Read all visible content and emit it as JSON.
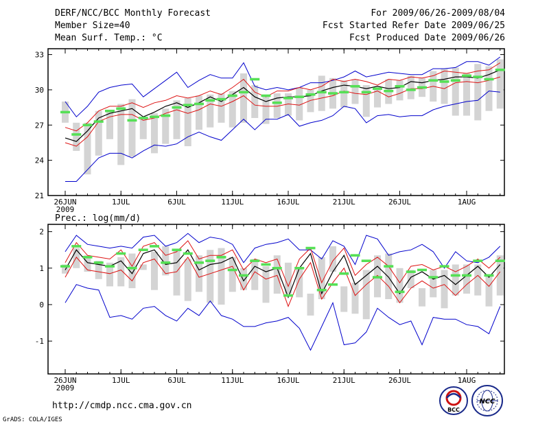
{
  "header": {
    "title": "DERF/NCC/BCC Monthly Forecast",
    "member_size": "Member Size=40",
    "variable": "Mean Surf. Temp.: °C",
    "period": "For 2009/06/26-2009/08/04",
    "started": "Fcst Started Refer Date 2009/06/25",
    "produced": "Fcst Produced Date 2009/06/26"
  },
  "footer": {
    "url": "http://cmdp.ncc.cma.gov.cn",
    "credit": "GrADS: COLA/IGES",
    "logo_bcc_text": "BCC",
    "logo_ncc_text": "NCC"
  },
  "colors": {
    "box": "#d4d4d4",
    "median": "#55e055",
    "envelope": "#0000cc",
    "spread": "#dd1111",
    "mean": "#000000"
  },
  "chart_data": [
    {
      "type": "line",
      "title": "Mean Surf. Temp.: °C",
      "ylabel": "°C",
      "ylim": [
        21,
        33.5
      ],
      "yticks": [
        21,
        24,
        27,
        30,
        33
      ],
      "day_count": 40,
      "start_date": "2009-06-26",
      "xtick_days": [
        0,
        5,
        10,
        15,
        20,
        25,
        30,
        36
      ],
      "xtick_labels": [
        "26JUN",
        "1JUL",
        "6JUL",
        "11JUL",
        "16JUL",
        "21JUL",
        "26JUL",
        "1AUG"
      ],
      "xtick_sublabel": "2009",
      "series": [
        {
          "name": "ensemble max",
          "values": [
            22.2,
            22.2,
            23.2,
            24.2,
            24.6,
            24.6,
            24.2,
            24.8,
            25.3,
            25.2,
            25.4,
            26.0,
            26.4,
            26.0,
            25.7,
            26.6,
            27.5,
            26.6,
            27.5,
            27.5,
            27.9,
            26.9,
            27.2,
            27.4,
            27.8,
            28.6,
            28.4,
            27.2,
            27.8,
            27.9,
            27.7,
            27.8,
            27.8,
            28.3,
            28.6,
            28.8,
            29.0,
            29.1,
            29.9,
            29.8
          ]
        },
        {
          "name": "ensemble min",
          "values": [
            29.0,
            27.7,
            28.6,
            29.8,
            30.2,
            30.4,
            30.5,
            29.4,
            30.1,
            30.8,
            31.5,
            30.2,
            30.8,
            31.3,
            31.0,
            31.0,
            32.3,
            30.3,
            30.0,
            30.2,
            30.0,
            30.2,
            30.6,
            30.6,
            30.8,
            31.1,
            31.6,
            31.1,
            31.3,
            31.5,
            31.4,
            31.3,
            31.3,
            31.8,
            31.8,
            31.9,
            32.4,
            32.4,
            32.1,
            32.8
          ]
        },
        {
          "name": "mean + std",
          "values": [
            26.8,
            26.5,
            27.2,
            28.2,
            28.6,
            28.6,
            28.9,
            28.5,
            28.9,
            29.1,
            29.5,
            29.3,
            29.5,
            29.9,
            29.6,
            30.2,
            30.9,
            29.8,
            29.4,
            29.9,
            29.9,
            30.2,
            30.0,
            30.3,
            30.9,
            30.7,
            30.9,
            30.7,
            30.4,
            30.9,
            30.8,
            31.1,
            31.0,
            31.2,
            31.6,
            31.5,
            31.4,
            31.6,
            31.7,
            32.3
          ]
        },
        {
          "name": "mean - std",
          "values": [
            25.5,
            25.2,
            26.0,
            27.3,
            27.7,
            27.9,
            27.9,
            27.4,
            27.6,
            28.0,
            28.3,
            28.0,
            28.3,
            28.8,
            28.6,
            29.0,
            29.5,
            28.7,
            28.6,
            28.6,
            28.8,
            28.7,
            29.1,
            29.3,
            29.5,
            29.9,
            29.7,
            29.6,
            29.9,
            29.4,
            29.7,
            30.1,
            30.1,
            30.3,
            30.1,
            30.6,
            30.7,
            30.6,
            30.8,
            31.1
          ]
        },
        {
          "name": "ensemble mean",
          "values": [
            25.9,
            25.6,
            26.5,
            27.6,
            28.0,
            28.2,
            28.4,
            27.7,
            28.1,
            28.6,
            28.9,
            28.5,
            28.9,
            29.4,
            29.0,
            29.6,
            30.2,
            29.4,
            29.0,
            29.3,
            29.4,
            29.4,
            29.5,
            29.9,
            30.2,
            30.4,
            30.3,
            30.1,
            30.3,
            30.1,
            30.2,
            30.7,
            30.6,
            30.8,
            30.9,
            31.1,
            31.1,
            31.0,
            31.3,
            31.7
          ]
        },
        {
          "name": "box upper",
          "values": [
            29.0,
            27.2,
            27.2,
            28.2,
            28.3,
            28.8,
            29.2,
            27.7,
            28.0,
            28.4,
            29.1,
            29.3,
            29.5,
            29.6,
            29.7,
            29.9,
            31.4,
            30.4,
            29.4,
            29.7,
            29.7,
            30.2,
            30.0,
            31.2,
            31.0,
            30.8,
            30.9,
            30.4,
            30.2,
            30.9,
            30.8,
            31.2,
            31.0,
            31.6,
            31.8,
            31.9,
            31.4,
            32.2,
            32.0,
            32.6
          ]
        },
        {
          "name": "box lower",
          "values": [
            27.2,
            24.8,
            22.8,
            24.4,
            25.8,
            23.6,
            24.3,
            25.8,
            24.6,
            25.4,
            25.8,
            25.2,
            26.6,
            26.8,
            27.2,
            26.8,
            27.2,
            27.6,
            27.1,
            27.6,
            27.8,
            27.4,
            28.1,
            28.2,
            28.4,
            28.5,
            28.8,
            27.7,
            28.5,
            28.8,
            29.1,
            29.2,
            29.4,
            29.0,
            28.8,
            27.8,
            27.8,
            27.4,
            28.2,
            28.4
          ]
        },
        {
          "name": "median",
          "values": [
            28.1,
            26.2,
            27.0,
            27.3,
            28.2,
            28.4,
            27.4,
            27.6,
            27.7,
            27.8,
            28.5,
            28.7,
            28.8,
            29.1,
            29.2,
            29.5,
            29.8,
            30.9,
            29.5,
            28.9,
            29.3,
            29.4,
            29.6,
            29.8,
            29.7,
            29.8,
            30.3,
            29.8,
            30.1,
            29.9,
            30.3,
            30.0,
            30.2,
            30.8,
            30.7,
            30.8,
            31.2,
            31.1,
            30.9,
            31.7
          ]
        }
      ]
    },
    {
      "type": "line",
      "title": "Prec.: log(mm/d)",
      "ylabel": "log(mm/d)",
      "ylim": [
        -1.9,
        2.2
      ],
      "yticks": [
        -1,
        0,
        1,
        2
      ],
      "day_count": 40,
      "start_date": "2009-06-26",
      "xtick_days": [
        0,
        5,
        10,
        15,
        20,
        25,
        30,
        36
      ],
      "xtick_labels": [
        "26JUN",
        "1JUL",
        "6JUL",
        "11JUL",
        "16JUL",
        "21JUL",
        "26JUL",
        "1AUG"
      ],
      "xtick_sublabel": "2009",
      "series": [
        {
          "name": "ensemble max",
          "values": [
            1.45,
            1.9,
            1.65,
            1.6,
            1.55,
            1.6,
            1.55,
            1.85,
            1.9,
            1.6,
            1.7,
            1.95,
            1.7,
            1.85,
            1.8,
            1.65,
            1.15,
            1.55,
            1.65,
            1.7,
            1.8,
            1.5,
            1.5,
            1.25,
            1.75,
            1.6,
            1.1,
            1.9,
            1.8,
            1.35,
            1.45,
            1.5,
            1.65,
            1.45,
            1.0,
            1.45,
            1.2,
            1.15,
            1.3,
            1.6
          ]
        },
        {
          "name": "ensemble min",
          "values": [
            0.05,
            0.55,
            0.45,
            0.4,
            -0.35,
            -0.3,
            -0.4,
            -0.1,
            -0.05,
            -0.3,
            -0.45,
            -0.1,
            -0.3,
            0.1,
            -0.3,
            -0.4,
            -0.6,
            -0.6,
            -0.5,
            -0.45,
            -0.35,
            -0.65,
            -1.25,
            -0.6,
            0.05,
            -1.1,
            -1.05,
            -0.75,
            -0.1,
            -0.35,
            -0.55,
            -0.45,
            -1.1,
            -0.35,
            -0.4,
            -0.4,
            -0.55,
            -0.6,
            -0.8,
            -0.05
          ]
        },
        {
          "name": "mean + std",
          "values": [
            1.15,
            1.7,
            1.35,
            1.3,
            1.25,
            1.5,
            1.05,
            1.6,
            1.7,
            1.35,
            1.45,
            1.75,
            1.25,
            1.35,
            1.35,
            1.5,
            0.95,
            1.25,
            1.15,
            1.25,
            0.5,
            1.25,
            1.55,
            0.6,
            1.2,
            1.55,
            0.8,
            1.1,
            1.3,
            1.05,
            0.6,
            1.05,
            1.1,
            0.95,
            1.05,
            0.9,
            1.05,
            1.25,
            1.0,
            1.3
          ]
        },
        {
          "name": "mean - std",
          "values": [
            0.75,
            1.3,
            0.95,
            0.9,
            0.85,
            0.95,
            0.65,
            1.15,
            1.25,
            0.85,
            0.9,
            1.3,
            0.75,
            0.85,
            0.95,
            1.05,
            0.4,
            0.9,
            0.7,
            0.8,
            -0.05,
            0.7,
            1.15,
            0.15,
            0.6,
            1.0,
            0.25,
            0.55,
            0.8,
            0.5,
            0.05,
            0.45,
            0.65,
            0.45,
            0.55,
            0.25,
            0.55,
            0.8,
            0.5,
            0.9
          ]
        },
        {
          "name": "ensemble mean",
          "values": [
            0.95,
            1.5,
            1.15,
            1.1,
            1.05,
            1.2,
            0.85,
            1.4,
            1.5,
            1.1,
            1.15,
            1.5,
            0.95,
            1.1,
            1.15,
            1.3,
            0.65,
            1.05,
            0.9,
            1.0,
            0.2,
            1.0,
            1.4,
            0.3,
            0.9,
            1.35,
            0.55,
            0.8,
            1.05,
            0.75,
            0.3,
            0.75,
            0.9,
            0.7,
            0.8,
            0.55,
            0.8,
            1.05,
            0.75,
            1.1
          ]
        },
        {
          "name": "box upper",
          "values": [
            1.1,
            1.55,
            1.35,
            1.2,
            1.15,
            1.3,
            1.4,
            1.1,
            1.45,
            1.6,
            1.5,
            1.25,
            1.35,
            1.5,
            1.55,
            1.3,
            1.0,
            1.25,
            1.05,
            1.35,
            1.15,
            1.0,
            0.3,
            1.3,
            1.6,
            0.5,
            0.6,
            0.95,
            1.35,
            1.4,
            1.0,
            0.95,
            0.45,
            0.95,
            0.95,
            1.1,
            1.1,
            1.1,
            0.8,
            1.35
          ]
        },
        {
          "name": "box lower",
          "values": [
            0.85,
            1.0,
            0.9,
            0.7,
            0.5,
            0.5,
            0.45,
            0.95,
            0.4,
            0.8,
            0.25,
            0.1,
            0.35,
            0.05,
            0.0,
            0.35,
            0.4,
            0.4,
            0.05,
            0.3,
            0.3,
            0.2,
            -0.3,
            0.15,
            0.9,
            -0.2,
            -0.25,
            -0.4,
            0.2,
            0.15,
            0.05,
            0.45,
            -0.05,
            0.2,
            -0.1,
            0.25,
            0.3,
            0.25,
            -0.05,
            0.25
          ]
        },
        {
          "name": "median",
          "values": [
            1.05,
            1.6,
            1.3,
            1.15,
            1.05,
            1.4,
            1.0,
            1.5,
            1.6,
            1.15,
            1.5,
            1.4,
            1.15,
            1.2,
            1.3,
            0.95,
            0.8,
            1.2,
            1.1,
            1.0,
            0.25,
            1.0,
            1.55,
            0.4,
            0.55,
            0.85,
            1.35,
            1.2,
            0.75,
            1.05,
            0.35,
            0.9,
            0.95,
            0.75,
            1.05,
            0.8,
            0.8,
            1.2,
            0.8,
            1.2
          ]
        }
      ]
    }
  ]
}
